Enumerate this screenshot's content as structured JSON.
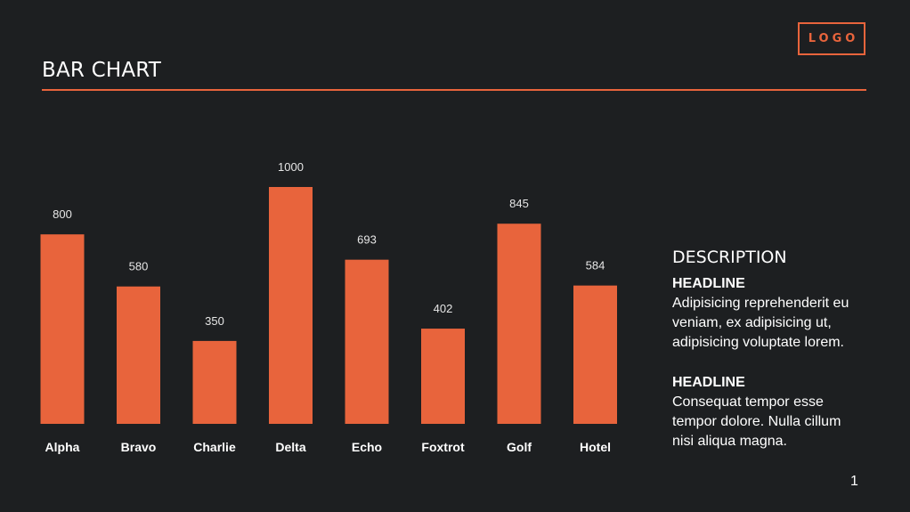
{
  "logo": "LOGO",
  "header": {
    "title": "BAR CHART"
  },
  "colors": {
    "accent": "#e8643c",
    "background": "#1d1f21",
    "text": "#ffffff"
  },
  "chart_data": {
    "type": "bar",
    "title": "BAR CHART",
    "categories": [
      "Alpha",
      "Bravo",
      "Charlie",
      "Delta",
      "Echo",
      "Foxtrot",
      "Golf",
      "Hotel"
    ],
    "values": [
      800,
      580,
      350,
      1000,
      693,
      402,
      845,
      584
    ],
    "value_labels": [
      "800",
      "580",
      "350",
      "1000",
      "693",
      "402",
      "845",
      "584"
    ],
    "xlabel": "",
    "ylabel": "",
    "ylim": [
      0,
      1000
    ],
    "grid": false,
    "legend": "none"
  },
  "description": {
    "heading": "DESCRIPTION",
    "blocks": [
      {
        "headline": "HEADLINE",
        "lines": [
          "Adipisicing reprehenderit eu",
          "veniam, ex adipisicing ut,",
          "adipisicing voluptate lorem."
        ]
      },
      {
        "headline": "HEADLINE",
        "lines": [
          "Consequat tempor esse",
          "tempor dolore. Nulla cillum",
          "nisi aliqua magna."
        ]
      }
    ]
  },
  "page_number": "1"
}
